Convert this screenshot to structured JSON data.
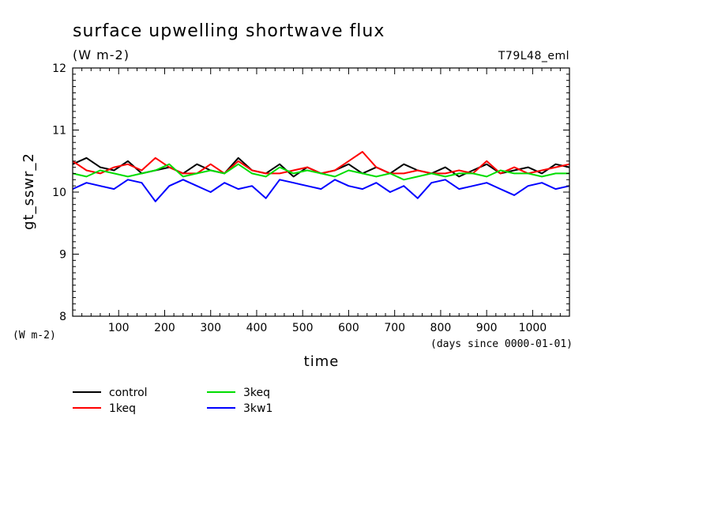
{
  "chart_data": {
    "type": "line",
    "title": "surface upwelling shortwave flux",
    "subtitle": "(W m-2)",
    "run_label": "T79L48_eml",
    "xlabel": "time",
    "x_unit": "(days since 0000-01-01)",
    "ylabel": "gt_sswr_2",
    "y_unit": "(W m-2)",
    "xlim": [
      0,
      1080
    ],
    "ylim": [
      8,
      12
    ],
    "x_ticks": [
      100,
      200,
      300,
      400,
      500,
      600,
      700,
      800,
      900,
      1000
    ],
    "y_ticks": [
      8,
      9,
      10,
      11,
      12
    ],
    "grid": false,
    "legend_position": "bottom-left",
    "x": [
      0,
      30,
      60,
      90,
      120,
      150,
      180,
      210,
      240,
      270,
      300,
      330,
      360,
      390,
      420,
      450,
      480,
      510,
      540,
      570,
      600,
      630,
      660,
      690,
      720,
      750,
      780,
      810,
      840,
      870,
      900,
      930,
      960,
      990,
      1020,
      1050,
      1080
    ],
    "series": [
      {
        "name": "control",
        "color": "#000000",
        "values": [
          10.45,
          10.55,
          10.4,
          10.35,
          10.5,
          10.3,
          10.35,
          10.4,
          10.3,
          10.45,
          10.35,
          10.3,
          10.55,
          10.35,
          10.3,
          10.45,
          10.25,
          10.4,
          10.3,
          10.35,
          10.45,
          10.3,
          10.4,
          10.3,
          10.45,
          10.35,
          10.3,
          10.4,
          10.25,
          10.35,
          10.45,
          10.3,
          10.35,
          10.4,
          10.3,
          10.45,
          10.4
        ]
      },
      {
        "name": "1keq",
        "color": "#ff0000",
        "values": [
          10.5,
          10.35,
          10.3,
          10.4,
          10.45,
          10.35,
          10.55,
          10.4,
          10.3,
          10.3,
          10.45,
          10.3,
          10.5,
          10.35,
          10.3,
          10.3,
          10.35,
          10.4,
          10.3,
          10.35,
          10.5,
          10.65,
          10.4,
          10.3,
          10.3,
          10.35,
          10.3,
          10.3,
          10.35,
          10.3,
          10.5,
          10.3,
          10.4,
          10.3,
          10.35,
          10.4,
          10.45
        ]
      },
      {
        "name": "3keq",
        "color": "#00dd00",
        "values": [
          10.3,
          10.25,
          10.35,
          10.3,
          10.25,
          10.3,
          10.35,
          10.45,
          10.25,
          10.3,
          10.35,
          10.3,
          10.45,
          10.3,
          10.25,
          10.4,
          10.3,
          10.35,
          10.3,
          10.25,
          10.35,
          10.3,
          10.25,
          10.3,
          10.2,
          10.25,
          10.3,
          10.25,
          10.3,
          10.3,
          10.25,
          10.35,
          10.3,
          10.3,
          10.25,
          10.3,
          10.3
        ]
      },
      {
        "name": "3kw1",
        "color": "#0000ff",
        "values": [
          10.05,
          10.15,
          10.1,
          10.05,
          10.2,
          10.15,
          9.85,
          10.1,
          10.2,
          10.1,
          10.0,
          10.15,
          10.05,
          10.1,
          9.9,
          10.2,
          10.15,
          10.1,
          10.05,
          10.2,
          10.1,
          10.05,
          10.15,
          10.0,
          10.1,
          9.9,
          10.15,
          10.2,
          10.05,
          10.1,
          10.15,
          10.05,
          9.95,
          10.1,
          10.15,
          10.05,
          10.1
        ]
      }
    ]
  }
}
